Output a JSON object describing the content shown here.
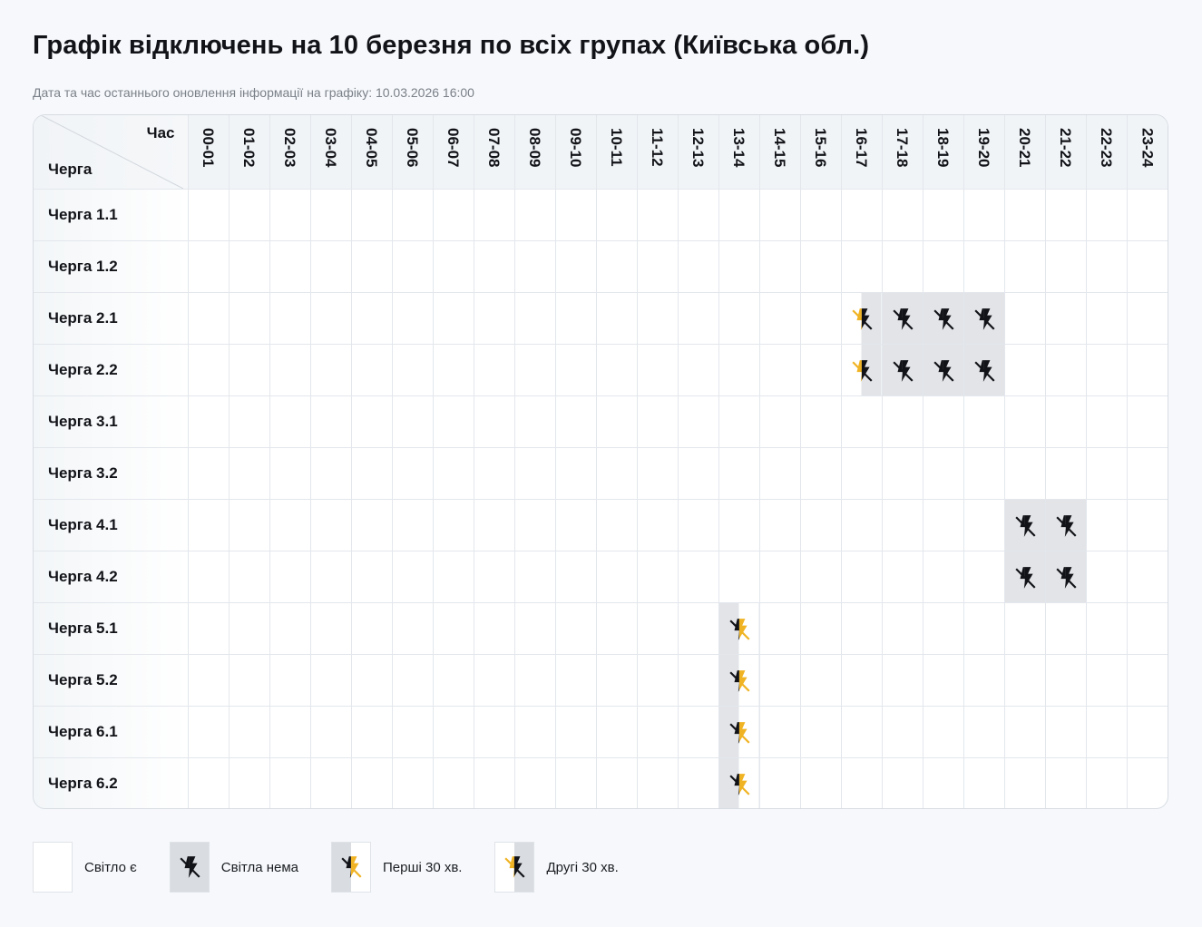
{
  "header": {
    "title": "Графік відключень на 10 березня по всіх групах (Київська обл.)",
    "updated": "Дата та час останнього оновлення інформації на графіку: 10.03.2026 16:00"
  },
  "table": {
    "corner_hour": "Час",
    "corner_queue": "Черга",
    "hours": [
      "00-01",
      "01-02",
      "02-03",
      "03-04",
      "04-05",
      "05-06",
      "06-07",
      "07-08",
      "08-09",
      "09-10",
      "10-11",
      "11-12",
      "12-13",
      "13-14",
      "14-15",
      "15-16",
      "16-17",
      "17-18",
      "18-19",
      "19-20",
      "20-21",
      "21-22",
      "22-23",
      "23-24"
    ],
    "rows": [
      {
        "label": "Черга 1.1",
        "cells": [
          "on",
          "on",
          "on",
          "on",
          "on",
          "on",
          "on",
          "on",
          "on",
          "on",
          "on",
          "on",
          "on",
          "on",
          "on",
          "on",
          "on",
          "on",
          "on",
          "on",
          "on",
          "on",
          "on",
          "on"
        ]
      },
      {
        "label": "Черга 1.2",
        "cells": [
          "on",
          "on",
          "on",
          "on",
          "on",
          "on",
          "on",
          "on",
          "on",
          "on",
          "on",
          "on",
          "on",
          "on",
          "on",
          "on",
          "on",
          "on",
          "on",
          "on",
          "on",
          "on",
          "on",
          "on"
        ]
      },
      {
        "label": "Черга 2.1",
        "cells": [
          "on",
          "on",
          "on",
          "on",
          "on",
          "on",
          "on",
          "on",
          "on",
          "on",
          "on",
          "on",
          "on",
          "on",
          "on",
          "on",
          "second",
          "off",
          "off",
          "off",
          "on",
          "on",
          "on",
          "on"
        ]
      },
      {
        "label": "Черга 2.2",
        "cells": [
          "on",
          "on",
          "on",
          "on",
          "on",
          "on",
          "on",
          "on",
          "on",
          "on",
          "on",
          "on",
          "on",
          "on",
          "on",
          "on",
          "second",
          "off",
          "off",
          "off",
          "on",
          "on",
          "on",
          "on"
        ]
      },
      {
        "label": "Черга 3.1",
        "cells": [
          "on",
          "on",
          "on",
          "on",
          "on",
          "on",
          "on",
          "on",
          "on",
          "on",
          "on",
          "on",
          "on",
          "on",
          "on",
          "on",
          "on",
          "on",
          "on",
          "on",
          "on",
          "on",
          "on",
          "on"
        ]
      },
      {
        "label": "Черга 3.2",
        "cells": [
          "on",
          "on",
          "on",
          "on",
          "on",
          "on",
          "on",
          "on",
          "on",
          "on",
          "on",
          "on",
          "on",
          "on",
          "on",
          "on",
          "on",
          "on",
          "on",
          "on",
          "on",
          "on",
          "on",
          "on"
        ]
      },
      {
        "label": "Черга 4.1",
        "cells": [
          "on",
          "on",
          "on",
          "on",
          "on",
          "on",
          "on",
          "on",
          "on",
          "on",
          "on",
          "on",
          "on",
          "on",
          "on",
          "on",
          "on",
          "on",
          "on",
          "on",
          "off",
          "off",
          "on",
          "on"
        ]
      },
      {
        "label": "Черга 4.2",
        "cells": [
          "on",
          "on",
          "on",
          "on",
          "on",
          "on",
          "on",
          "on",
          "on",
          "on",
          "on",
          "on",
          "on",
          "on",
          "on",
          "on",
          "on",
          "on",
          "on",
          "on",
          "off",
          "off",
          "on",
          "on"
        ]
      },
      {
        "label": "Черга 5.1",
        "cells": [
          "on",
          "on",
          "on",
          "on",
          "on",
          "on",
          "on",
          "on",
          "on",
          "on",
          "on",
          "on",
          "on",
          "first",
          "on",
          "on",
          "on",
          "on",
          "on",
          "on",
          "on",
          "on",
          "on",
          "on"
        ]
      },
      {
        "label": "Черга 5.2",
        "cells": [
          "on",
          "on",
          "on",
          "on",
          "on",
          "on",
          "on",
          "on",
          "on",
          "on",
          "on",
          "on",
          "on",
          "first",
          "on",
          "on",
          "on",
          "on",
          "on",
          "on",
          "on",
          "on",
          "on",
          "on"
        ]
      },
      {
        "label": "Черга 6.1",
        "cells": [
          "on",
          "on",
          "on",
          "on",
          "on",
          "on",
          "on",
          "on",
          "on",
          "on",
          "on",
          "on",
          "on",
          "first",
          "on",
          "on",
          "on",
          "on",
          "on",
          "on",
          "on",
          "on",
          "on",
          "on"
        ]
      },
      {
        "label": "Черга 6.2",
        "cells": [
          "on",
          "on",
          "on",
          "on",
          "on",
          "on",
          "on",
          "on",
          "on",
          "on",
          "on",
          "on",
          "on",
          "first",
          "on",
          "on",
          "on",
          "on",
          "on",
          "on",
          "on",
          "on",
          "on",
          "on"
        ]
      }
    ]
  },
  "legend": [
    {
      "state": "on",
      "label": "Світло є",
      "icon": "none"
    },
    {
      "state": "off",
      "label": "Світла нема",
      "icon": "no-power-icon"
    },
    {
      "state": "first",
      "label": "Перші 30 хв.",
      "icon": "no-power-first-half-icon"
    },
    {
      "state": "second",
      "label": "Другі 30 хв.",
      "icon": "no-power-second-half-icon"
    }
  ],
  "colors": {
    "outage_bg": "#e2e4e8",
    "icon_dark": "#111318",
    "icon_yellow": "#f0b323"
  }
}
